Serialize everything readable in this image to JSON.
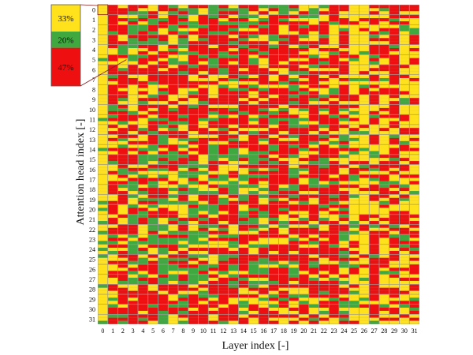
{
  "chart_data": {
    "type": "heatmap",
    "title": "",
    "xlabel": "Layer index [-]",
    "ylabel": "Attention head index [-]",
    "x_ticks": [
      "0",
      "1",
      "2",
      "3",
      "4",
      "5",
      "6",
      "7",
      "8",
      "9",
      "10",
      "11",
      "12",
      "13",
      "14",
      "15",
      "16",
      "17",
      "18",
      "19",
      "20",
      "21",
      "22",
      "23",
      "24",
      "25",
      "26",
      "27",
      "28",
      "29",
      "30",
      "31"
    ],
    "y_ticks": [
      "0",
      "1",
      "2",
      "3",
      "4",
      "5",
      "6",
      "7",
      "8",
      "9",
      "10",
      "11",
      "12",
      "13",
      "14",
      "15",
      "16",
      "17",
      "18",
      "19",
      "20",
      "21",
      "22",
      "23",
      "24",
      "25",
      "26",
      "27",
      "28",
      "29",
      "30",
      "31"
    ],
    "cell_stripes": 3,
    "categories": [
      "yellow",
      "green",
      "red"
    ],
    "colors": {
      "yellow": "#FFE11C",
      "green": "#3FA83F",
      "red": "#EE1010",
      "gap": "#9A9A9A"
    },
    "legend_inset": {
      "items": [
        {
          "label": "33%",
          "color": "yellow",
          "value": 33
        },
        {
          "label": "20%",
          "color": "green",
          "value": 20
        },
        {
          "label": "47%",
          "color": "red",
          "value": 47
        }
      ],
      "zoom_of_cell": {
        "layer": "0",
        "head": "0"
      }
    }
  }
}
